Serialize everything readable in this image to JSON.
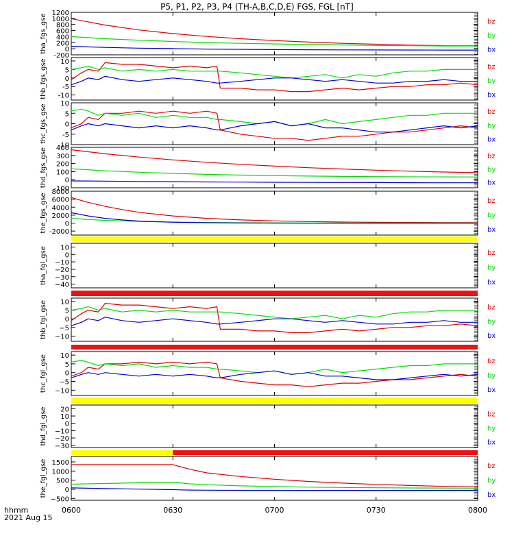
{
  "title": "P5, P1, P2, P3, P4 (TH-A,B,C,D,E) FGS, FGL [nT]",
  "time_axis": {
    "corner_label": "hhmm",
    "date_label": "2021 Aug 15",
    "ticks": [
      "0600",
      "0630",
      "0700",
      "0730",
      "0800"
    ],
    "tick_minutes": [
      0,
      30,
      60,
      90,
      120
    ]
  },
  "colors": {
    "bz": "#dd0000",
    "by": "#00dd00",
    "bx": "#0000cc",
    "yellow": "#ffff00",
    "red": "#ee1111"
  },
  "chart_data": [
    {
      "type": "line",
      "ylabel": "tha_fgs_gse",
      "ylim": [
        -200,
        1200
      ],
      "ticks": [
        1200,
        1000,
        800,
        600,
        400,
        200,
        0,
        -200
      ],
      "tick_labels": [
        "1200",
        "1000",
        "800",
        "600",
        "400",
        "200",
        "0",
        "-200"
      ],
      "x": [
        0,
        10,
        20,
        30,
        40,
        50,
        60,
        70,
        80,
        90,
        100,
        110,
        120
      ],
      "series": [
        {
          "name": "bz",
          "values": [
            990,
            780,
            620,
            500,
            405,
            330,
            270,
            220,
            180,
            150,
            120,
            100,
            95
          ]
        },
        {
          "name": "by",
          "values": [
            400,
            330,
            280,
            240,
            205,
            180,
            160,
            140,
            125,
            110,
            100,
            92,
            88
          ]
        },
        {
          "name": "bx",
          "values": [
            80,
            45,
            20,
            5,
            -10,
            -20,
            -28,
            -33,
            -37,
            -40,
            -42,
            -44,
            -45
          ]
        }
      ],
      "bar": null
    },
    {
      "type": "line",
      "ylabel": "thb_fgs_gse",
      "ylim": [
        -13,
        12
      ],
      "ticks": [
        10,
        5,
        0,
        -5,
        -10
      ],
      "tick_labels": [
        "10",
        "5",
        "0",
        "-5",
        "-10"
      ],
      "x": [
        0,
        3,
        5,
        8,
        10,
        15,
        20,
        25,
        30,
        35,
        40,
        43,
        44,
        50,
        55,
        60,
        65,
        70,
        75,
        80,
        85,
        90,
        95,
        100,
        105,
        110,
        115,
        120
      ],
      "series": [
        {
          "name": "bz",
          "values": [
            -1,
            3,
            5,
            4,
            9,
            8,
            8,
            7,
            6,
            7,
            6,
            7,
            -6,
            -6,
            -7,
            -7,
            -8,
            -8,
            -7,
            -6,
            -7,
            -6,
            -5,
            -5,
            -4,
            -4,
            -3,
            -4
          ]
        },
        {
          "name": "by",
          "values": [
            5,
            6,
            7,
            5,
            6,
            4,
            5,
            4,
            5,
            4,
            4,
            4,
            4,
            3,
            2,
            1,
            0,
            1,
            2,
            0,
            2,
            1,
            3,
            4,
            4,
            5,
            5,
            5
          ]
        },
        {
          "name": "bx",
          "values": [
            -4,
            -2,
            0,
            -1,
            1,
            -1,
            -2,
            -1,
            0,
            -1,
            -2,
            -3,
            -3,
            -2,
            -1,
            0,
            0,
            -1,
            -2,
            -1,
            -2,
            -3,
            -3,
            -2,
            -2,
            -1,
            -2,
            -2
          ]
        }
      ],
      "bar": null
    },
    {
      "type": "line",
      "ylabel": "thc_fgs_gse",
      "ylim": [
        -10,
        10
      ],
      "ticks": [
        10,
        5,
        0,
        -5,
        -10
      ],
      "tick_labels": [
        "10",
        "5",
        "0",
        "-5",
        "-10"
      ],
      "x": [
        0,
        3,
        5,
        8,
        10,
        15,
        20,
        25,
        30,
        35,
        40,
        43,
        44,
        50,
        55,
        60,
        65,
        70,
        75,
        80,
        85,
        90,
        95,
        100,
        105,
        110,
        115,
        120
      ],
      "series": [
        {
          "name": "bz",
          "values": [
            -2,
            0,
            3,
            2,
            5,
            5,
            6,
            5,
            6,
            5,
            6,
            5,
            -3,
            -5,
            -6,
            -7,
            -7,
            -8,
            -7,
            -6,
            -6,
            -5,
            -4,
            -4,
            -3,
            -2,
            -1,
            -2
          ]
        },
        {
          "name": "by",
          "values": [
            6,
            7,
            6,
            4,
            5,
            4,
            5,
            3,
            4,
            3,
            3,
            2,
            2,
            1,
            0,
            1,
            -1,
            0,
            2,
            0,
            1,
            2,
            3,
            4,
            4,
            5,
            5,
            5
          ]
        },
        {
          "name": "bx",
          "values": [
            -3,
            -1,
            0,
            -1,
            0,
            -1,
            -2,
            -1,
            -2,
            -1,
            -2,
            -3,
            -3,
            -1,
            0,
            1,
            -1,
            0,
            -2,
            -2,
            -3,
            -4,
            -4,
            -3,
            -2,
            -1,
            -2,
            -1
          ]
        }
      ],
      "bar": null
    },
    {
      "type": "line",
      "ylabel": "thd_fgs_gse",
      "ylim": [
        -100,
        400
      ],
      "ticks": [
        400,
        300,
        200,
        100,
        0,
        -100
      ],
      "tick_labels": [
        "400",
        "300",
        "200",
        "100",
        "0",
        "-100"
      ],
      "x": [
        0,
        10,
        20,
        30,
        40,
        50,
        60,
        70,
        80,
        90,
        100,
        110,
        120
      ],
      "series": [
        {
          "name": "bz",
          "values": [
            370,
            320,
            280,
            245,
            215,
            190,
            168,
            148,
            132,
            118,
            105,
            95,
            88
          ]
        },
        {
          "name": "by",
          "values": [
            135,
            110,
            92,
            78,
            66,
            57,
            50,
            45,
            41,
            38,
            36,
            35,
            34
          ]
        },
        {
          "name": "bx",
          "values": [
            -15,
            -18,
            -22,
            -25,
            -28,
            -30,
            -32,
            -34,
            -35,
            -36,
            -37,
            -38,
            -38
          ]
        }
      ],
      "bar": null
    },
    {
      "type": "line",
      "ylabel": "the_fgs_gse",
      "ylim": [
        -3000,
        8000
      ],
      "ticks": [
        8000,
        6000,
        4000,
        2000,
        0,
        -2000
      ],
      "tick_labels": [
        "8000",
        "6000",
        "4000",
        "2000",
        "0",
        "-2000"
      ],
      "x": [
        0,
        5,
        10,
        15,
        20,
        30,
        40,
        50,
        60,
        70,
        80,
        90,
        100,
        110,
        120
      ],
      "series": [
        {
          "name": "bz",
          "values": [
            6400,
            5200,
            4200,
            3400,
            2700,
            1800,
            1200,
            800,
            550,
            380,
            270,
            200,
            160,
            130,
            110
          ]
        },
        {
          "name": "by",
          "values": [
            1200,
            900,
            700,
            550,
            420,
            260,
            160,
            100,
            60,
            40,
            25,
            15,
            10,
            8,
            6
          ]
        },
        {
          "name": "bx",
          "values": [
            2600,
            1800,
            1200,
            800,
            500,
            220,
            90,
            30,
            0,
            -10,
            -15,
            -18,
            -20,
            -21,
            -22
          ]
        }
      ],
      "bar": [
        {
          "from": 0,
          "to": 120,
          "color": "yellow"
        }
      ]
    },
    {
      "type": "line",
      "ylabel": "tha_fgl_gse",
      "ylim": [
        -45,
        15
      ],
      "ticks": [
        10,
        0,
        -10,
        -20,
        -30,
        -40
      ],
      "tick_labels": [
        "10",
        "0",
        "−10",
        "−20",
        "−30",
        "−40"
      ],
      "x": [],
      "series": [],
      "bar": [
        {
          "from": 0,
          "to": 120,
          "color": "red"
        }
      ]
    },
    {
      "type": "line",
      "ylabel": "thb_fgl_gse",
      "ylim": [
        -13,
        12
      ],
      "ticks": [
        10,
        5,
        0,
        -5,
        -10
      ],
      "tick_labels": [
        "10",
        "5",
        "0",
        "−5",
        "−10"
      ],
      "x": [
        0,
        3,
        5,
        8,
        10,
        15,
        20,
        25,
        30,
        35,
        40,
        43,
        44,
        50,
        55,
        60,
        65,
        70,
        75,
        80,
        85,
        90,
        95,
        100,
        105,
        110,
        115,
        120
      ],
      "series": [
        {
          "name": "bz",
          "values": [
            -1,
            3,
            5,
            4,
            9,
            8,
            8,
            7,
            6,
            7,
            6,
            7,
            -6,
            -6,
            -7,
            -7,
            -8,
            -8,
            -7,
            -6,
            -7,
            -6,
            -5,
            -5,
            -4,
            -4,
            -3,
            -4
          ]
        },
        {
          "name": "by",
          "values": [
            5,
            6,
            7,
            5,
            6,
            4,
            5,
            4,
            5,
            4,
            4,
            4,
            4,
            3,
            2,
            1,
            0,
            1,
            2,
            0,
            2,
            1,
            3,
            4,
            4,
            5,
            5,
            5
          ]
        },
        {
          "name": "bx",
          "values": [
            -4,
            -2,
            0,
            -1,
            1,
            -1,
            -2,
            -1,
            0,
            -1,
            -2,
            -3,
            -3,
            -2,
            -1,
            0,
            0,
            -1,
            -2,
            -1,
            -2,
            -3,
            -3,
            -2,
            -2,
            -1,
            -2,
            -2
          ]
        }
      ],
      "bar": [
        {
          "from": 0,
          "to": 120,
          "color": "red"
        }
      ]
    },
    {
      "type": "line",
      "ylabel": "thc_fgl_gse",
      "ylim": [
        -13,
        12
      ],
      "ticks": [
        10,
        5,
        0,
        -5,
        -10
      ],
      "tick_labels": [
        "10",
        "5",
        "0",
        "−5",
        "−10"
      ],
      "x": [
        0,
        3,
        5,
        8,
        10,
        15,
        20,
        25,
        30,
        35,
        40,
        43,
        44,
        50,
        55,
        60,
        65,
        70,
        75,
        80,
        85,
        90,
        95,
        100,
        105,
        110,
        115,
        120
      ],
      "series": [
        {
          "name": "bz",
          "values": [
            -2,
            0,
            3,
            2,
            5,
            5,
            6,
            5,
            6,
            5,
            6,
            5,
            -3,
            -5,
            -6,
            -7,
            -7,
            -8,
            -7,
            -6,
            -6,
            -5,
            -4,
            -4,
            -3,
            -2,
            -1,
            -2
          ]
        },
        {
          "name": "by",
          "values": [
            6,
            7,
            6,
            4,
            5,
            4,
            5,
            3,
            4,
            3,
            3,
            2,
            2,
            1,
            0,
            1,
            -1,
            0,
            2,
            0,
            1,
            2,
            3,
            4,
            4,
            5,
            5,
            5
          ]
        },
        {
          "name": "bx",
          "values": [
            -3,
            -1,
            0,
            -1,
            0,
            -1,
            -2,
            -1,
            -2,
            -1,
            -2,
            -3,
            -3,
            -1,
            0,
            1,
            -1,
            0,
            -2,
            -2,
            -3,
            -4,
            -4,
            -3,
            -2,
            -1,
            -2,
            -1
          ]
        }
      ],
      "bar": [
        {
          "from": 0,
          "to": 120,
          "color": "yellow"
        }
      ]
    },
    {
      "type": "line",
      "ylabel": "thd_fgl_gse",
      "ylim": [
        -33,
        25
      ],
      "ticks": [
        20,
        10,
        0,
        -10,
        -20,
        -30
      ],
      "tick_labels": [
        "20",
        "10",
        "0",
        "−10",
        "−20",
        "−30"
      ],
      "x": [],
      "series": [],
      "bar": [
        {
          "from": 0,
          "to": 30,
          "color": "yellow"
        },
        {
          "from": 30,
          "to": 120,
          "color": "red"
        }
      ]
    },
    {
      "type": "line",
      "ylabel": "the_fgl_gse",
      "ylim": [
        -600,
        1800
      ],
      "ticks": [
        1500,
        1000,
        500,
        0,
        -500
      ],
      "tick_labels": [
        "1500",
        "1000",
        "500",
        "0",
        "−500"
      ],
      "x": [
        0,
        10,
        20,
        30,
        35,
        40,
        50,
        60,
        70,
        80,
        90,
        100,
        110,
        120
      ],
      "series": [
        {
          "name": "bz",
          "values": [
            1350,
            1350,
            1350,
            1350,
            1100,
            900,
            700,
            550,
            430,
            340,
            270,
            210,
            160,
            130
          ]
        },
        {
          "name": "by",
          "values": [
            280,
            320,
            360,
            390,
            300,
            250,
            190,
            150,
            120,
            100,
            85,
            75,
            68,
            62
          ]
        },
        {
          "name": "bx",
          "values": [
            80,
            40,
            10,
            -20,
            -40,
            -50,
            -55,
            -58,
            -60,
            -60,
            -60,
            -60,
            -60,
            -60
          ]
        }
      ],
      "bar": null
    }
  ]
}
